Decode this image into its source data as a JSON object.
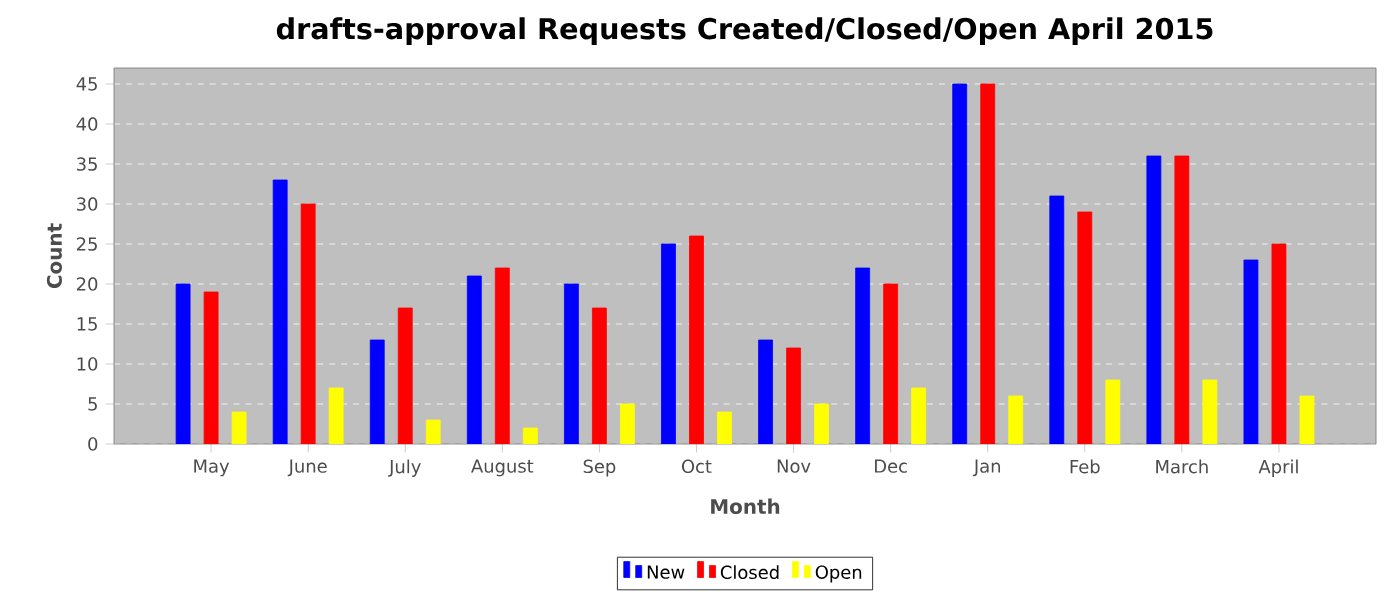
{
  "chart_data": {
    "type": "bar",
    "title": "drafts-approval Requests Created/Closed/Open April 2015",
    "xlabel": "Month",
    "ylabel": "Count",
    "categories": [
      "May",
      "June",
      "July",
      "August",
      "Sep",
      "Oct",
      "Nov",
      "Dec",
      "Jan",
      "Feb",
      "March",
      "April"
    ],
    "series": [
      {
        "name": "New",
        "color": "#0000ff",
        "values": [
          20,
          33,
          13,
          21,
          20,
          25,
          13,
          22,
          45,
          31,
          36,
          23
        ]
      },
      {
        "name": "Closed",
        "color": "#ff0000",
        "values": [
          19,
          30,
          17,
          22,
          17,
          26,
          12,
          20,
          45,
          29,
          36,
          25
        ]
      },
      {
        "name": "Open",
        "color": "#ffff00",
        "values": [
          4,
          7,
          3,
          2,
          5,
          4,
          5,
          7,
          6,
          8,
          8,
          6
        ]
      }
    ],
    "ylim": [
      0,
      47
    ],
    "yticks": [
      0,
      5,
      10,
      15,
      20,
      25,
      30,
      35,
      40,
      45
    ],
    "grid": "y",
    "legend": "bottom"
  }
}
